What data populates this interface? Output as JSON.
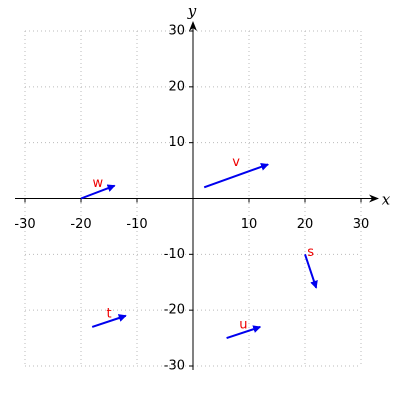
{
  "chart_data": {
    "type": "vector",
    "xlabel": "x",
    "ylabel": "y",
    "xlim": [
      -30,
      30
    ],
    "ylim": [
      -30,
      30
    ],
    "xticks": [
      -30,
      -20,
      -10,
      10,
      20,
      30
    ],
    "yticks": [
      -30,
      -20,
      -10,
      10,
      20,
      30
    ],
    "grid": true,
    "color": "#0000ee",
    "label_color": "#ee0000",
    "vectors": [
      {
        "name": "w",
        "x0": -20,
        "y0": 0,
        "x1": -14,
        "y1": 2.3
      },
      {
        "name": "v",
        "x0": 2,
        "y0": 2,
        "x1": 13.4,
        "y1": 6.1
      },
      {
        "name": "s",
        "x0": 20,
        "y0": -10,
        "x1": 22,
        "y1": -16
      },
      {
        "name": "t",
        "x0": -18,
        "y0": -23,
        "x1": -12,
        "y1": -21
      },
      {
        "name": "u",
        "x0": 6,
        "y0": -25,
        "x1": 12,
        "y1": -23
      }
    ]
  }
}
